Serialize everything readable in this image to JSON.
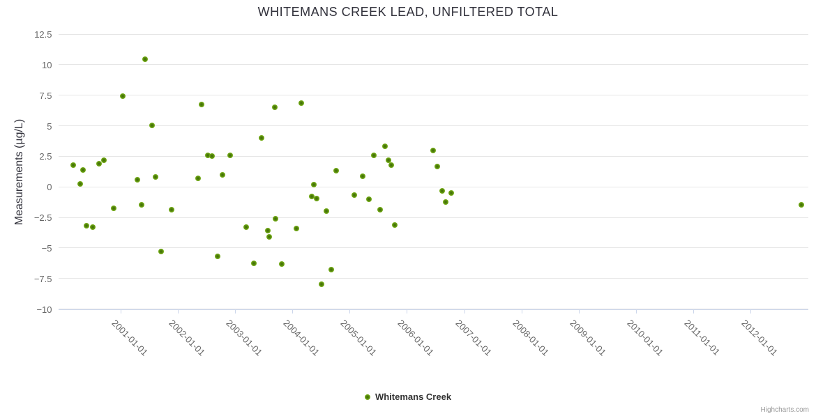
{
  "title": "WHITEMANS CREEK LEAD, UNFILTERED TOTAL",
  "credits": "Highcharts.com",
  "legend": {
    "items": [
      {
        "label": "Whitemans Creek",
        "marker_color": "#77b018"
      }
    ]
  },
  "colors": {
    "point": "#77b018",
    "gridline": "#e6e6e6",
    "axis_line": "#ccd6eb",
    "tick_label": "#666666",
    "title_text": "#33333d",
    "credits_text": "#999999"
  },
  "chart_data": {
    "type": "scatter",
    "title": "WHITEMANS CREEK LEAD, UNFILTERED TOTAL",
    "xlabel": "",
    "ylabel": "Measurements (µg/L)",
    "ylim": [
      -10,
      12.5
    ],
    "grid": true,
    "legend_position": "bottom",
    "y_ticks": [
      12.5,
      10,
      7.5,
      5,
      2.5,
      0,
      -2.5,
      -5,
      -7.5,
      -10
    ],
    "y_tick_labels": [
      "12.5",
      "10",
      "7.5",
      "5",
      "2.5",
      "0",
      "−2.5",
      "−5",
      "−7.5",
      "−10"
    ],
    "x_range": [
      "1999-12-01",
      "2013-01-01"
    ],
    "x_ticks": [
      "2001-01-01",
      "2002-01-01",
      "2003-01-01",
      "2004-01-01",
      "2005-01-01",
      "2006-01-01",
      "2007-01-01",
      "2008-01-01",
      "2009-01-01",
      "2010-01-01",
      "2011-01-01",
      "2012-01-01"
    ],
    "series": [
      {
        "name": "Whitemans Creek",
        "color": "#77b018",
        "points": [
          {
            "date": "2000-03-05",
            "value": 1.75
          },
          {
            "date": "2000-04-18",
            "value": 0.25
          },
          {
            "date": "2000-05-07",
            "value": 1.35
          },
          {
            "date": "2000-05-30",
            "value": -3.2
          },
          {
            "date": "2000-07-08",
            "value": -3.3
          },
          {
            "date": "2000-08-17",
            "value": 1.9
          },
          {
            "date": "2000-09-16",
            "value": 2.2
          },
          {
            "date": "2000-11-18",
            "value": -1.75
          },
          {
            "date": "2001-01-15",
            "value": 7.45
          },
          {
            "date": "2001-04-19",
            "value": 0.6
          },
          {
            "date": "2001-05-14",
            "value": -1.45
          },
          {
            "date": "2001-06-07",
            "value": 10.45
          },
          {
            "date": "2001-07-21",
            "value": 5.05
          },
          {
            "date": "2001-08-13",
            "value": 0.8
          },
          {
            "date": "2001-09-17",
            "value": -5.3
          },
          {
            "date": "2001-11-24",
            "value": -1.85
          },
          {
            "date": "2002-05-12",
            "value": 0.7
          },
          {
            "date": "2002-06-03",
            "value": 6.75
          },
          {
            "date": "2002-07-11",
            "value": 2.6
          },
          {
            "date": "2002-08-09",
            "value": 2.5
          },
          {
            "date": "2002-09-11",
            "value": -5.7
          },
          {
            "date": "2002-10-15",
            "value": 1.0
          },
          {
            "date": "2002-12-02",
            "value": 2.6
          },
          {
            "date": "2003-03-15",
            "value": -3.3
          },
          {
            "date": "2003-05-01",
            "value": -6.25
          },
          {
            "date": "2003-06-17",
            "value": 4.0
          },
          {
            "date": "2003-07-29",
            "value": -3.6
          },
          {
            "date": "2003-08-07",
            "value": -4.1
          },
          {
            "date": "2003-09-13",
            "value": 6.5
          },
          {
            "date": "2003-09-16",
            "value": -2.6
          },
          {
            "date": "2003-10-26",
            "value": -6.3
          },
          {
            "date": "2004-01-28",
            "value": -3.4
          },
          {
            "date": "2004-02-27",
            "value": 6.85
          },
          {
            "date": "2004-05-06",
            "value": -0.8
          },
          {
            "date": "2004-05-18",
            "value": 0.2
          },
          {
            "date": "2004-06-05",
            "value": -0.95
          },
          {
            "date": "2004-07-04",
            "value": -7.95
          },
          {
            "date": "2004-08-04",
            "value": -2.0
          },
          {
            "date": "2004-09-06",
            "value": -6.8
          },
          {
            "date": "2004-10-09",
            "value": 1.3
          },
          {
            "date": "2005-02-01",
            "value": -0.7
          },
          {
            "date": "2005-03-26",
            "value": 0.85
          },
          {
            "date": "2005-05-06",
            "value": -1.0
          },
          {
            "date": "2005-06-03",
            "value": 2.55
          },
          {
            "date": "2005-07-14",
            "value": -1.9
          },
          {
            "date": "2005-08-13",
            "value": 3.3
          },
          {
            "date": "2005-09-07",
            "value": 2.2
          },
          {
            "date": "2005-09-24",
            "value": 1.8
          },
          {
            "date": "2005-10-16",
            "value": -3.1
          },
          {
            "date": "2006-06-15",
            "value": 2.95
          },
          {
            "date": "2006-07-14",
            "value": 1.65
          },
          {
            "date": "2006-08-13",
            "value": -0.35
          },
          {
            "date": "2006-09-05",
            "value": -1.25
          },
          {
            "date": "2006-10-12",
            "value": -0.5
          },
          {
            "date": "2012-11-18",
            "value": -1.5
          }
        ]
      }
    ]
  }
}
